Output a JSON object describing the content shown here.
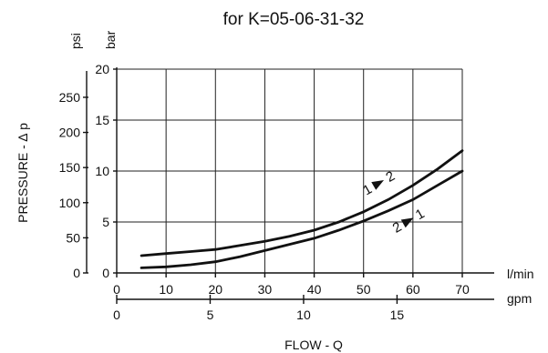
{
  "chart_data": {
    "type": "line",
    "title": "for K=05-06-31-32",
    "ylabel": "PRESSURE - ∆ p",
    "xlabel": "FLOW - Q",
    "x_unit": "l/min",
    "x2_unit": "gpm",
    "y_unit": "bar",
    "y2_unit": "psi",
    "xlim": [
      0,
      70
    ],
    "ylim": [
      0,
      20
    ],
    "x_ticks": [
      0,
      10,
      20,
      30,
      40,
      50,
      60,
      70
    ],
    "y_ticks": [
      0,
      5,
      10,
      15,
      20
    ],
    "x2_ticks": [
      0,
      5,
      10,
      15
    ],
    "y2_ticks": [
      0,
      50,
      100,
      150,
      200,
      250
    ],
    "grid": true,
    "series": [
      {
        "name": "1 → 2",
        "x": [
          5,
          10,
          15,
          20,
          25,
          30,
          35,
          40,
          45,
          50,
          55,
          60,
          65,
          70
        ],
        "y": [
          1.7,
          1.9,
          2.1,
          2.3,
          2.7,
          3.1,
          3.6,
          4.2,
          5.0,
          6.0,
          7.2,
          8.6,
          10.2,
          12.0
        ]
      },
      {
        "name": "2 → 1",
        "x": [
          5,
          10,
          15,
          20,
          25,
          30,
          35,
          40,
          45,
          50,
          55,
          60,
          65,
          70
        ],
        "y": [
          0.5,
          0.6,
          0.8,
          1.1,
          1.6,
          2.2,
          2.8,
          3.4,
          4.2,
          5.1,
          6.1,
          7.2,
          8.6,
          10.0
        ]
      }
    ],
    "annotations": [
      {
        "from": "1",
        "to": "2",
        "x": 53,
        "y": 8.8
      },
      {
        "from": "2",
        "to": "1",
        "x": 59,
        "y": 5.1
      }
    ]
  }
}
